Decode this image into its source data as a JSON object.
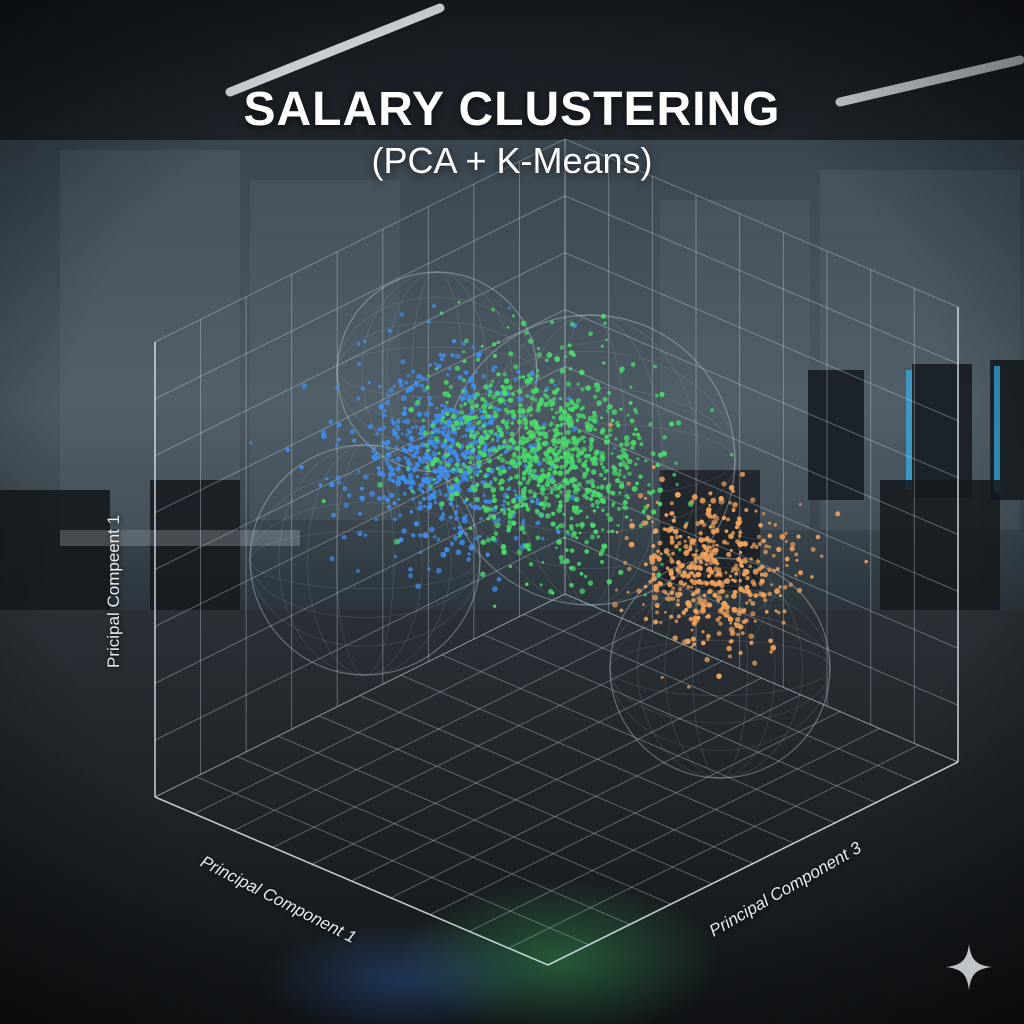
{
  "chart_data": {
    "type": "scatter",
    "projection": "3d",
    "title": "SALARY CLUSTERING",
    "subtitle": "(PCA + K-Means)",
    "axes": {
      "left": "Pricipal Compeent 1",
      "front_left": "Principal Component 1",
      "front_right": "Principal Component 3"
    },
    "grid": true,
    "legend": "none",
    "series": [
      {
        "color": "#3f8ff0",
        "center": [
          -1.5,
          0.2,
          1.6
        ],
        "spread": [
          0.9,
          1.0,
          0.9
        ],
        "count": 620
      },
      {
        "color": "#4ad96a",
        "center": [
          0.2,
          0.4,
          0.9
        ],
        "spread": [
          0.8,
          1.3,
          0.9
        ],
        "count": 900
      },
      {
        "color": "#f0a35c",
        "center": [
          1.6,
          -0.7,
          -0.6
        ],
        "spread": [
          0.7,
          0.8,
          0.7
        ],
        "count": 480
      }
    ],
    "cluster_spheres": 4
  }
}
